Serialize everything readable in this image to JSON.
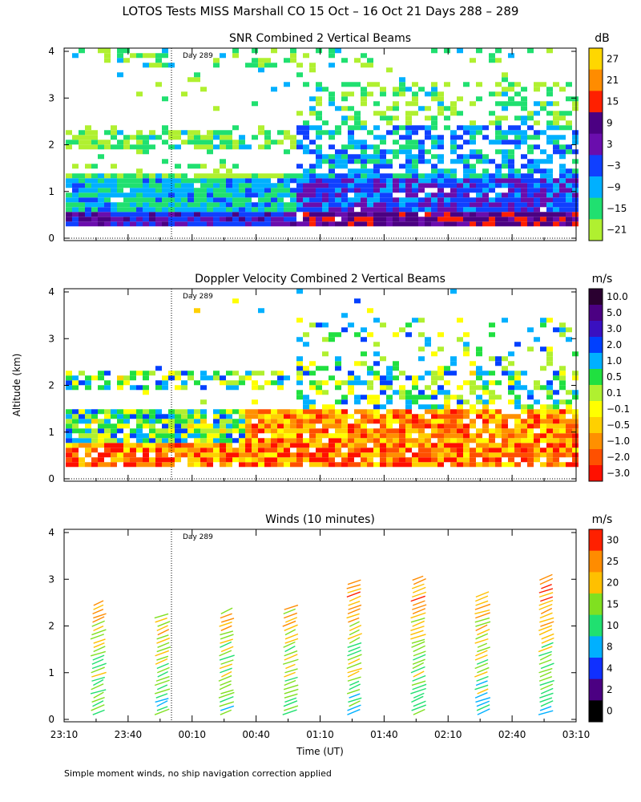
{
  "title": "LOTOS Tests MISS Marshall CO  15 Oct – 16 Oct 21 Days 288 – 289",
  "footnote": "Simple moment winds, no ship navigation correction applied",
  "shared": {
    "ylabel": "Altitude (km)",
    "xlabel": "Time (UT)",
    "x_ticks": [
      "23:10",
      "23:40",
      "00:10",
      "00:40",
      "01:10",
      "01:40",
      "02:10",
      "02:40",
      "03:10"
    ],
    "y_ticks": [
      "0",
      "1",
      "2",
      "3",
      "4"
    ],
    "day_marker": "Day 289"
  },
  "chart_data": [
    {
      "type": "heatmap",
      "title": "SNR Combined 2 Vertical Beams",
      "colorbar_unit": "dB",
      "ylim": [
        0,
        4
      ],
      "colorbar_ticks": [
        "27",
        "21",
        "15",
        "9",
        "3",
        "−3",
        "−9",
        "−15",
        "−21"
      ],
      "colorbar_colors": [
        "#ffd700",
        "#ff8c00",
        "#ff2000",
        "#4b0082",
        "#6a0dad",
        "#1040ff",
        "#00b0ff",
        "#20e070",
        "#b0f030"
      ],
      "description_series": [
        {
          "name": "low altitude band (0.2-0.5 km)",
          "values": [
            -3,
            3,
            -3,
            -9,
            -3,
            3,
            -3,
            -3,
            -9
          ]
        },
        {
          "name": "mid altitude band (1-2 km)",
          "values": [
            -15,
            -15,
            -15,
            -15,
            -9,
            -3,
            -9,
            -9,
            -15
          ]
        }
      ]
    },
    {
      "type": "heatmap",
      "title": "Doppler Velocity Combined 2 Vertical Beams",
      "colorbar_unit": "m/s",
      "ylim": [
        0,
        4
      ],
      "colorbar_ticks": [
        "10.0",
        "5.0",
        "3.0",
        "2.0",
        "1.0",
        "0.5",
        "0.1",
        "−0.1",
        "−0.5",
        "−1.0",
        "−2.0",
        "−3.0"
      ],
      "colorbar_colors": [
        "#2a0030",
        "#4b0082",
        "#3a10c0",
        "#0040ff",
        "#00b0ff",
        "#20e040",
        "#b0f030",
        "#ffff00",
        "#ffd000",
        "#ff9000",
        "#ff5000",
        "#ff1000"
      ]
    },
    {
      "type": "scatter",
      "title": "Winds (10 minutes)",
      "colorbar_unit": "m/s",
      "ylim": [
        0,
        4
      ],
      "colorbar_ticks": [
        "30",
        "25",
        "20",
        "15",
        "10",
        "8",
        "4",
        "2",
        "0"
      ],
      "colorbar_colors": [
        "#ff2000",
        "#ff8c00",
        "#ffc000",
        "#80e020",
        "#20e070",
        "#00b0ff",
        "#1030ff",
        "#4b0082",
        "#000000"
      ],
      "profile_times": [
        "23:25",
        "23:55",
        "00:25",
        "00:55",
        "01:25",
        "01:55",
        "02:25",
        "02:55"
      ],
      "profile_top_km": [
        2.5,
        2.2,
        2.3,
        2.4,
        2.9,
        3.0,
        2.7,
        3.0
      ]
    }
  ]
}
